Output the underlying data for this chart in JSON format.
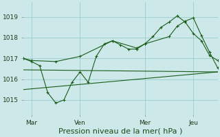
{
  "bg_color": "#cce8e8",
  "grid_color": "#99cccc",
  "line_color": "#1a5c1a",
  "title": "Pression niveau de la mer( hPa )",
  "title_fontsize": 8,
  "ylabel_ticks": [
    1015,
    1016,
    1017,
    1018,
    1019
  ],
  "xlim": [
    0,
    96
  ],
  "ylim": [
    1014.3,
    1019.7
  ],
  "xtick_labels": [
    "Mar",
    "Ven",
    "Mer",
    "Jeu"
  ],
  "xtick_positions": [
    4,
    28,
    60,
    84
  ],
  "vlines": [
    4,
    28,
    60,
    84
  ],
  "main_line_x": [
    0,
    4,
    8,
    12,
    16,
    20,
    24,
    28,
    32,
    36,
    40,
    44,
    48,
    52,
    56,
    60,
    64,
    68,
    72,
    76,
    80,
    84,
    88,
    92,
    96
  ],
  "main_line_y": [
    1017.0,
    1016.85,
    1016.65,
    1015.35,
    1014.85,
    1015.0,
    1015.85,
    1016.35,
    1015.85,
    1017.1,
    1017.7,
    1017.85,
    1017.65,
    1017.45,
    1017.45,
    1017.7,
    1018.05,
    1018.5,
    1018.75,
    1019.05,
    1018.75,
    1018.2,
    1017.85,
    1017.15,
    1016.9
  ],
  "smooth_line_x": [
    0,
    4,
    16,
    28,
    44,
    56,
    60,
    72,
    76,
    80,
    84,
    88,
    92,
    96
  ],
  "smooth_line_y": [
    1017.0,
    1016.9,
    1016.85,
    1017.1,
    1017.85,
    1017.5,
    1017.7,
    1018.05,
    1018.55,
    1018.8,
    1018.95,
    1018.1,
    1017.3,
    1016.55
  ],
  "lower_line_x": [
    0,
    96
  ],
  "lower_line_y": [
    1016.45,
    1016.35
  ],
  "lower2_line_x": [
    0,
    96
  ],
  "lower2_line_y": [
    1015.5,
    1016.35
  ]
}
